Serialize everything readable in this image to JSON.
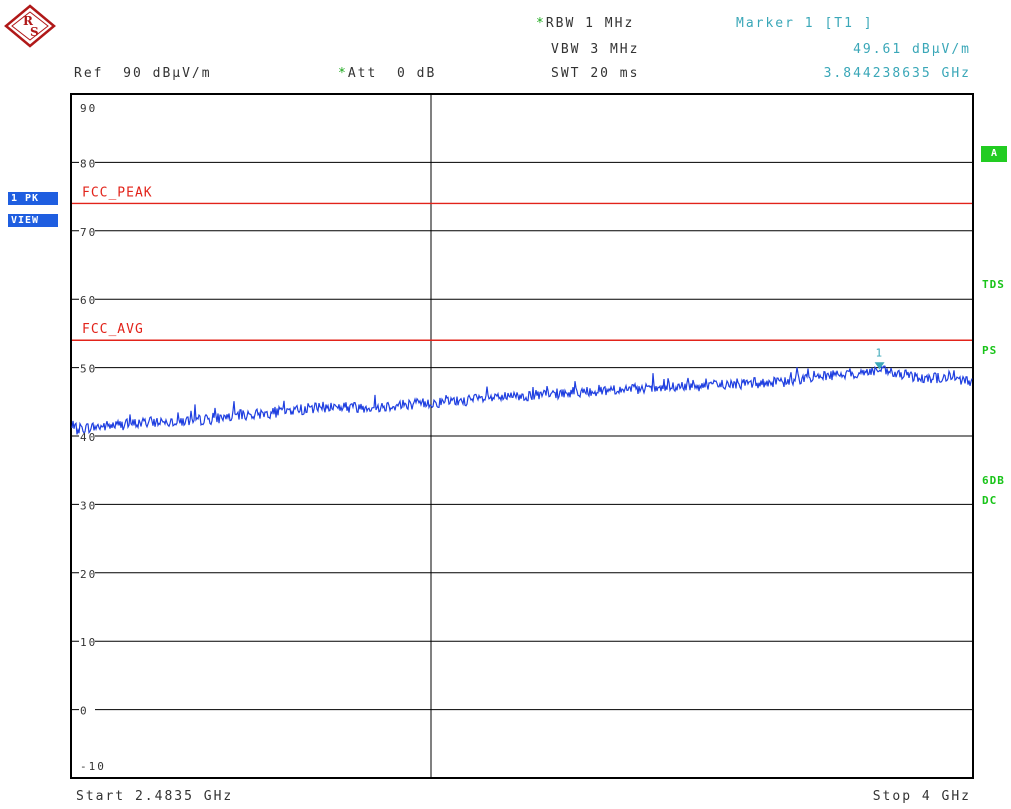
{
  "header": {
    "rbw_label": "RBW",
    "rbw_value": "1 MHz",
    "vbw_label": "VBW",
    "vbw_value": "3 MHz",
    "swt_label": "SWT",
    "swt_value": "20 ms",
    "marker_title": "Marker 1 [T1 ]",
    "marker_level": "49.61 dBµV/m",
    "marker_freq": "3.844238635 GHz",
    "ref_label": "Ref",
    "ref_value": "90 dBµV/m",
    "att_label": "Att",
    "att_value": "0 dB",
    "star": "*"
  },
  "left_badges": {
    "trace": "1 PK",
    "mode": "VIEW"
  },
  "right_labels": {
    "a": "A",
    "tds": "TDS",
    "ps": "PS",
    "sixdb": "6DB",
    "dc": "DC"
  },
  "footer": {
    "start": "Start 2.4835 GHz",
    "stop": "Stop 4 GHz"
  },
  "colors": {
    "trace": "#1f3fe0",
    "limit": "#e2231a",
    "marker": "#3aa7b8",
    "grid": "#000000",
    "accent_green": "#22cc22"
  },
  "chart_data": {
    "type": "line",
    "ylim": [
      -10,
      90
    ],
    "y_ticks": [
      "90",
      "80",
      "70",
      "60",
      "50",
      "40",
      "30",
      "20",
      "10",
      "0",
      "-10"
    ],
    "x_range_ghz": [
      2.4835,
      4.0
    ],
    "limit_lines": [
      {
        "name": "FCC_PEAK",
        "value": 74
      },
      {
        "name": "FCC_AVG",
        "value": 54
      }
    ],
    "marker": {
      "label": "1",
      "x_ghz": 3.844238635,
      "y": 49.61
    },
    "series": [
      {
        "x": [
          2.4835,
          2.52,
          2.56,
          2.6,
          2.64,
          2.68,
          2.72,
          2.76,
          2.8,
          2.84,
          2.88,
          2.92,
          2.96,
          3.0,
          3.04,
          3.08,
          3.12,
          3.16,
          3.2,
          3.24,
          3.28,
          3.32,
          3.36,
          3.4,
          3.44,
          3.48,
          3.52,
          3.56,
          3.6,
          3.64,
          3.68,
          3.72,
          3.76,
          3.8,
          3.844,
          3.88,
          3.92,
          3.96,
          4.0
        ],
        "values": [
          41.0,
          41.3,
          41.6,
          41.9,
          42.2,
          42.2,
          42.5,
          43.0,
          43.2,
          43.6,
          44.0,
          44.3,
          44.2,
          44.3,
          44.6,
          44.8,
          45.0,
          45.3,
          45.6,
          45.8,
          46.0,
          46.3,
          46.6,
          46.8,
          46.8,
          47.0,
          47.2,
          47.4,
          47.6,
          47.8,
          47.8,
          48.6,
          48.9,
          49.1,
          49.6,
          48.9,
          48.6,
          48.4,
          48.0
        ]
      }
    ]
  }
}
